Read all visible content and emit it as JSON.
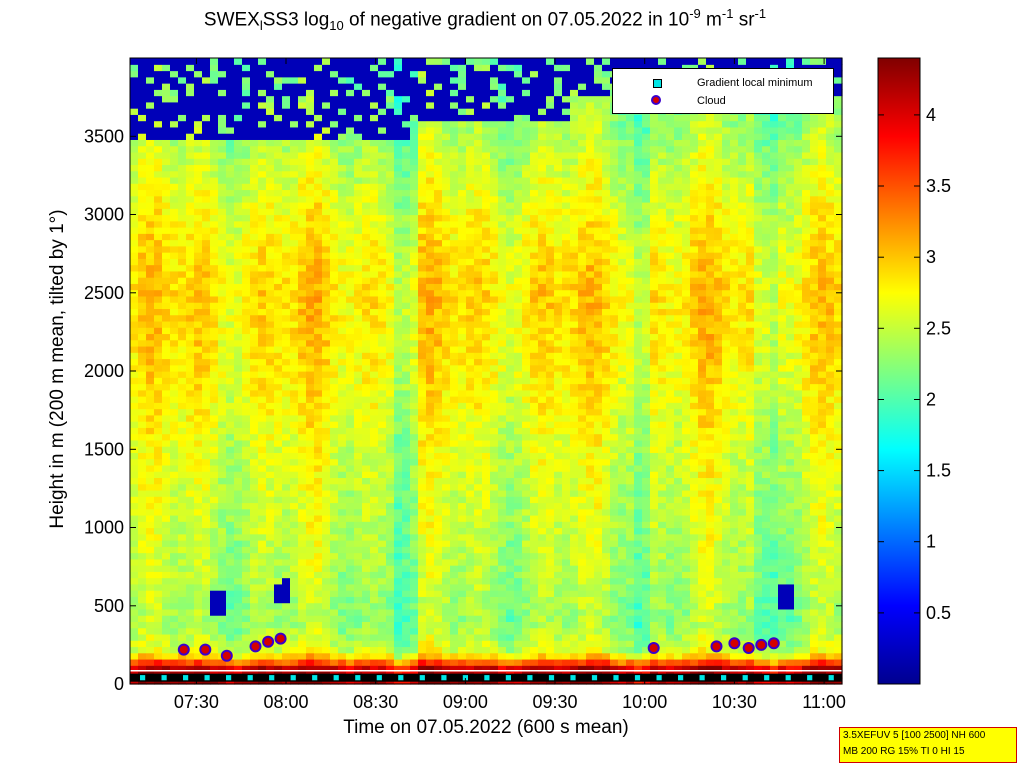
{
  "title": {
    "part1": "SWEX",
    "sub1": "l",
    "part2": "SS3 log",
    "sub2": "10",
    "part3": " of negative gradient on 07.05.2022 in 10",
    "sup1": "-9",
    "part4": " m",
    "sup2": "-1",
    "part5": " sr",
    "sup3": "-1"
  },
  "legend": {
    "item1": "Gradient local minimum",
    "item2": "Cloud"
  },
  "info": {
    "line1": "3.5XEFUV 5 [100 2500] NH 600",
    "line2": "MB 200 RG 15% TI 0 HI 15"
  },
  "chart_data": {
    "type": "heatmap",
    "title": "SWEXlSS3 log10 of negative gradient on 07.05.2022 in 10^-9 m^-1 sr^-1",
    "xlabel": "Time on 07.05.2022 (600 s mean)",
    "ylabel": "Height in m (200 m mean, tilted by 1°)",
    "xlim_hours": [
      7.13,
      11.1
    ],
    "ylim": [
      0,
      4000
    ],
    "xticks": [
      {
        "label": "07:30",
        "hours": 7.5
      },
      {
        "label": "08:00",
        "hours": 8.0
      },
      {
        "label": "08:30",
        "hours": 8.5
      },
      {
        "label": "09:00",
        "hours": 9.0
      },
      {
        "label": "09:30",
        "hours": 9.5
      },
      {
        "label": "10:00",
        "hours": 10.0
      },
      {
        "label": "10:30",
        "hours": 10.5
      },
      {
        "label": "11:00",
        "hours": 11.0
      }
    ],
    "yticks": [
      0,
      500,
      1000,
      1500,
      2000,
      2500,
      3000,
      3500
    ],
    "colorbar": {
      "min": 0,
      "max": 4.4,
      "ticks": [
        0.5,
        1,
        1.5,
        2,
        2.5,
        3,
        3.5,
        4
      ],
      "colormap": "jet"
    },
    "profile": [
      {
        "height": 0,
        "value": 4.3
      },
      {
        "height": 100,
        "value": 4.1
      },
      {
        "height": 200,
        "value": 2.6
      },
      {
        "height": 400,
        "value": 2.3
      },
      {
        "height": 600,
        "value": 2.4
      },
      {
        "height": 1000,
        "value": 2.5
      },
      {
        "height": 1500,
        "value": 2.6
      },
      {
        "height": 2000,
        "value": 2.8
      },
      {
        "height": 2500,
        "value": 2.9
      },
      {
        "height": 3000,
        "value": 2.7
      },
      {
        "height": 3500,
        "value": 2.4
      },
      {
        "height": 3900,
        "value": 2.2
      }
    ],
    "low_value_patches": [
      {
        "t0": 7.13,
        "t1": 8.7,
        "h0": 3500,
        "h1": 4000,
        "value": 0.2
      },
      {
        "t0": 8.7,
        "t1": 9.6,
        "h0": 3600,
        "h1": 4000,
        "value": 0.2
      },
      {
        "t0": 9.6,
        "t1": 11.1,
        "h0": 3750,
        "h1": 4000,
        "value": 0.2
      },
      {
        "t0": 7.58,
        "t1": 7.68,
        "h0": 450,
        "h1": 580,
        "value": 0.2
      },
      {
        "t0": 7.92,
        "t1": 8.03,
        "h0": 520,
        "h1": 670,
        "value": 0.2
      },
      {
        "t0": 10.75,
        "t1": 10.85,
        "h0": 490,
        "h1": 640,
        "value": 0.2
      }
    ],
    "clouds": [
      {
        "hours": 7.43,
        "height": 220
      },
      {
        "hours": 7.55,
        "height": 220
      },
      {
        "hours": 7.67,
        "height": 180
      },
      {
        "hours": 7.83,
        "height": 240
      },
      {
        "hours": 7.9,
        "height": 270
      },
      {
        "hours": 7.97,
        "height": 290
      },
      {
        "hours": 10.05,
        "height": 230
      },
      {
        "hours": 10.4,
        "height": 240
      },
      {
        "hours": 10.5,
        "height": 260
      },
      {
        "hours": 10.58,
        "height": 230
      },
      {
        "hours": 10.65,
        "height": 250
      },
      {
        "hours": 10.72,
        "height": 260
      }
    ],
    "gradient_minima_height": 40
  }
}
